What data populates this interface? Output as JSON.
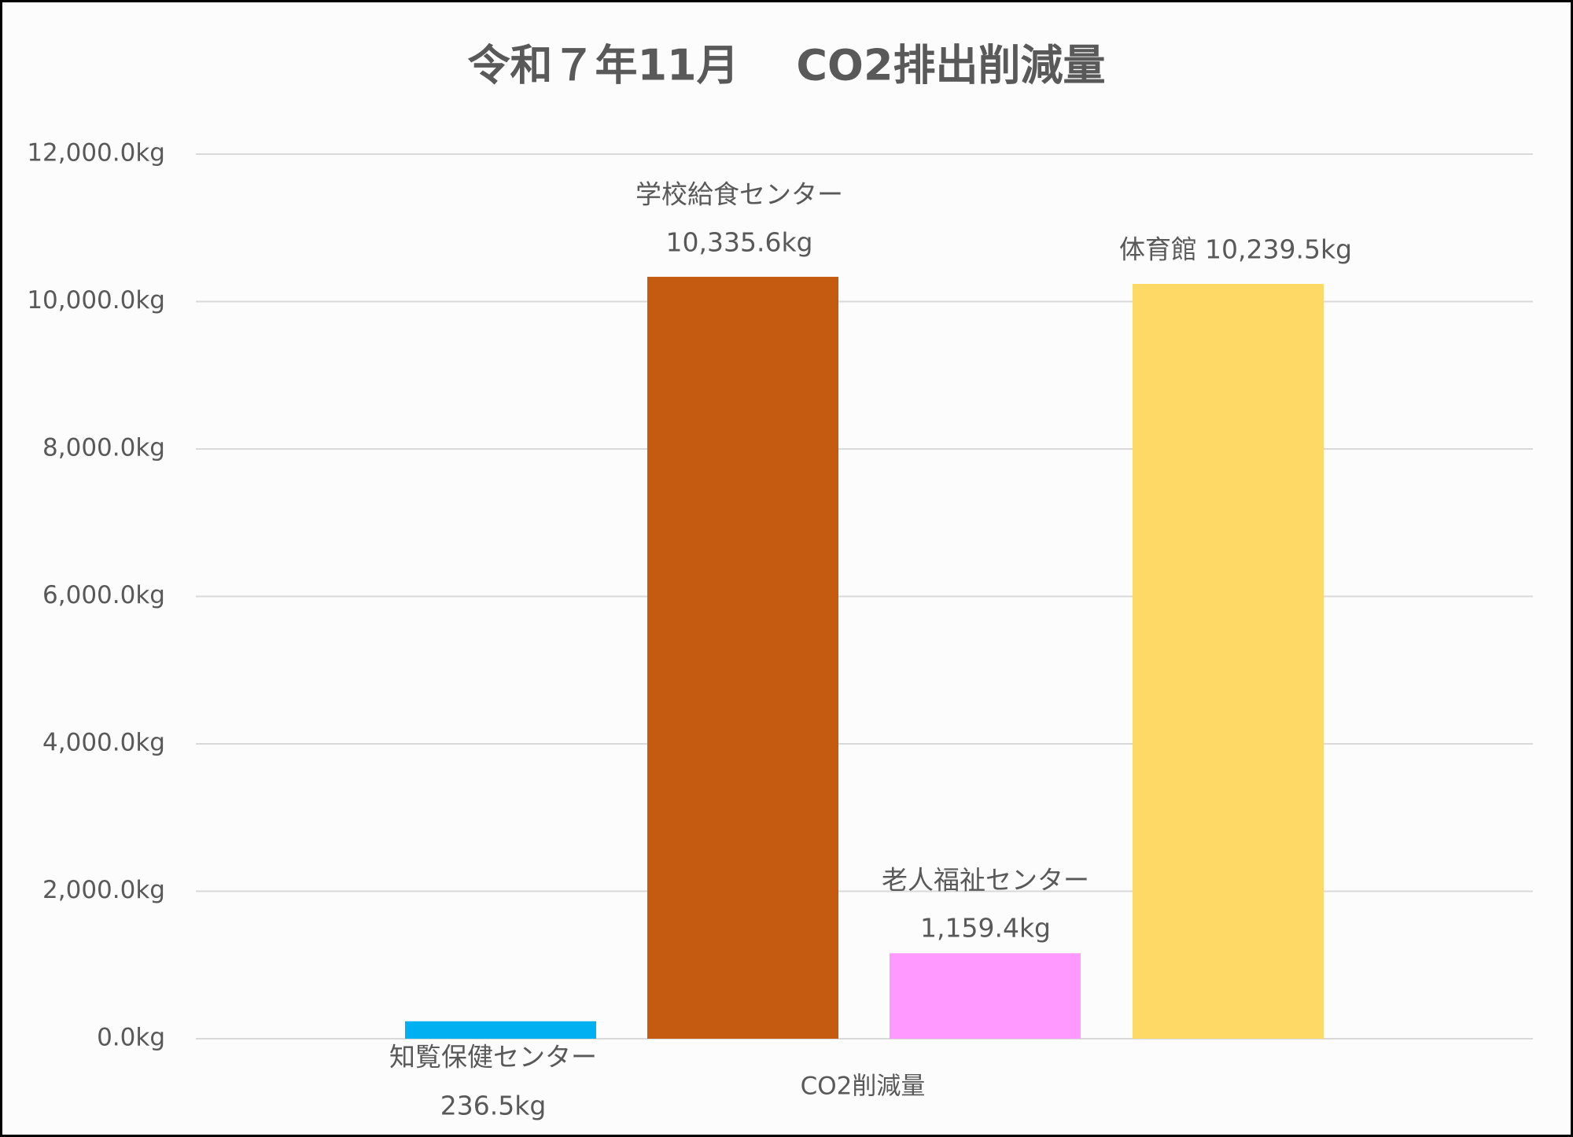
{
  "chart_data": {
    "type": "bar",
    "title": "令和７年11月　 CO2排出削減量",
    "categories": [
      "CO2削減量"
    ],
    "series": [
      {
        "name": "知覧保健センター",
        "color": "#00b0f0",
        "values": [
          236.5
        ],
        "value_labels": [
          "236.5kg"
        ]
      },
      {
        "name": "学校給食センター",
        "color": "#c55a11",
        "values": [
          10335.6
        ],
        "value_labels": [
          "10,335.6kg"
        ]
      },
      {
        "name": "老人福祉センター",
        "color": "#ff99ff",
        "values": [
          1159.4
        ],
        "value_labels": [
          "1,159.4kg"
        ]
      },
      {
        "name": "体育館",
        "color": "#ffd966",
        "values": [
          10239.5
        ],
        "value_labels": [
          "10,239.5kg"
        ]
      }
    ],
    "ylim": [
      0,
      12000
    ],
    "yticks": [
      {
        "value": 0,
        "label": "0.0kg"
      },
      {
        "value": 2000,
        "label": "2,000.0kg"
      },
      {
        "value": 4000,
        "label": "4,000.0kg"
      },
      {
        "value": 6000,
        "label": "6,000.0kg"
      },
      {
        "value": 8000,
        "label": "8,000.0kg"
      },
      {
        "value": 10000,
        "label": "10,000.0kg"
      },
      {
        "value": 12000,
        "label": "12,000.0kg"
      }
    ],
    "grid": true
  }
}
